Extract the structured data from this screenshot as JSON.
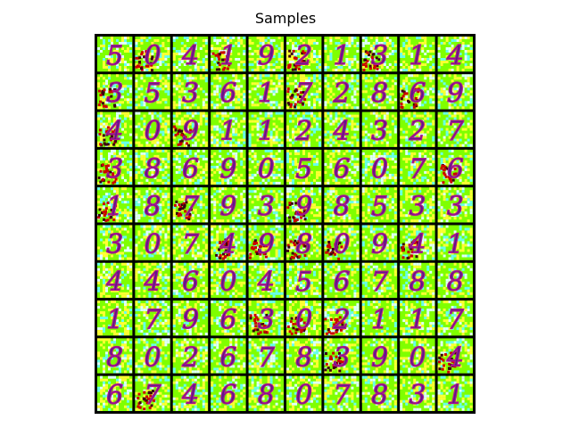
{
  "figure": {
    "title": "Samples"
  },
  "grid": {
    "rows": 10,
    "cols": 10,
    "digits": [
      [
        "5",
        "0",
        "4",
        "1",
        "9",
        "2",
        "1",
        "3",
        "1",
        "4"
      ],
      [
        "3",
        "5",
        "3",
        "6",
        "1",
        "7",
        "2",
        "8",
        "6",
        "9"
      ],
      [
        "4",
        "0",
        "9",
        "1",
        "1",
        "2",
        "4",
        "3",
        "2",
        "7"
      ],
      [
        "3",
        "8",
        "6",
        "9",
        "0",
        "5",
        "6",
        "0",
        "7",
        "6"
      ],
      [
        "1",
        "8",
        "7",
        "9",
        "3",
        "9",
        "8",
        "5",
        "3",
        "3"
      ],
      [
        "3",
        "0",
        "7",
        "4",
        "9",
        "8",
        "0",
        "9",
        "4",
        "1"
      ],
      [
        "4",
        "4",
        "6",
        "0",
        "4",
        "5",
        "6",
        "7",
        "8",
        "8"
      ],
      [
        "1",
        "7",
        "9",
        "6",
        "3",
        "0",
        "2",
        "1",
        "1",
        "7"
      ],
      [
        "8",
        "0",
        "2",
        "6",
        "7",
        "8",
        "3",
        "9",
        "0",
        "4"
      ],
      [
        "6",
        "7",
        "4",
        "6",
        "8",
        "0",
        "7",
        "8",
        "3",
        "1"
      ]
    ],
    "colors": {
      "background": "#7fff00",
      "noise_yellow": "#ffff33",
      "noise_cyan": "#66ffee",
      "noise_white": "#e0ffff",
      "stroke_dark": "#5a1a8a",
      "stroke_mid": "#b0168c",
      "artifact_red": "#cc0000",
      "artifact_dark": "#3a0010",
      "border": "#000000"
    }
  }
}
